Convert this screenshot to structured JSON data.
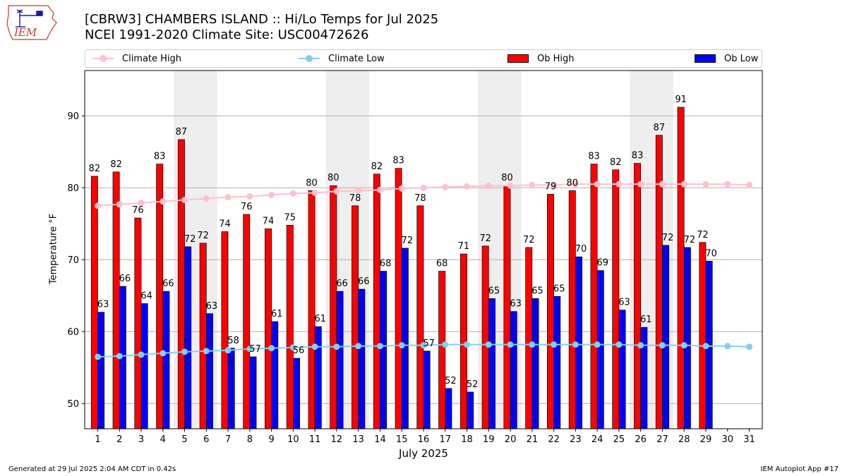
{
  "header": {
    "title_line1": "[CBRW3] CHAMBERS ISLAND :: Hi/Lo Temps for Jul 2025",
    "title_line2": "NCEI 1991-2020 Climate Site: USC00472626",
    "logo_text": "IEM"
  },
  "legend": {
    "climate_high": "Climate High",
    "climate_low": "Climate Low",
    "ob_high": "Ob High",
    "ob_low": "Ob Low"
  },
  "footer": {
    "generated": "Generated at 29 Jul 2025 2:04 AM CDT in 0.42s",
    "app": "IEM Autoplot App #17"
  },
  "colors": {
    "ob_high": "#ff0000",
    "ob_low": "#0000ff",
    "climate_high": "#ffc0cb",
    "climate_low": "#87ceeb",
    "weekend_band": "#eeeeee",
    "grid": "#b0b0b0"
  },
  "chart_data": {
    "type": "bar",
    "xlabel": "July 2025",
    "ylabel": "Temperature °F",
    "ylim": [
      46.5,
      96.3
    ],
    "yticks": [
      50,
      60,
      70,
      80,
      90
    ],
    "grid": "horizontal",
    "legend_position": "top",
    "categories": [
      "1",
      "2",
      "3",
      "4",
      "5",
      "6",
      "7",
      "8",
      "9",
      "10",
      "11",
      "12",
      "13",
      "14",
      "15",
      "16",
      "17",
      "18",
      "19",
      "20",
      "21",
      "22",
      "23",
      "24",
      "25",
      "26",
      "27",
      "28",
      "29",
      "30",
      "31"
    ],
    "weekend_bands": [
      [
        5,
        6
      ],
      [
        12,
        13
      ],
      [
        19,
        20
      ],
      [
        26,
        27
      ]
    ],
    "series": [
      {
        "name": "Ob High",
        "kind": "bar",
        "values": [
          81.6,
          82.2,
          75.8,
          83.3,
          86.7,
          72.3,
          73.9,
          76.3,
          74.3,
          74.8,
          79.6,
          80.3,
          77.5,
          81.9,
          82.7,
          77.5,
          68.4,
          70.8,
          71.9,
          80.3,
          71.7,
          79.1,
          79.6,
          83.3,
          82.5,
          83.4,
          87.3,
          91.2,
          72.4,
          null,
          null
        ],
        "labels": [
          "82",
          "82",
          "76",
          "83",
          "87",
          "72",
          "74",
          "76",
          "74",
          "75",
          "80",
          "80",
          "78",
          "82",
          "83",
          "78",
          "68",
          "71",
          "72",
          "80",
          "72",
          "79",
          "80",
          "83",
          "82",
          "83",
          "87",
          "91",
          "72",
          "",
          ""
        ]
      },
      {
        "name": "Ob Low",
        "kind": "bar",
        "values": [
          62.7,
          66.3,
          63.9,
          65.6,
          71.8,
          62.5,
          57.7,
          56.5,
          61.4,
          56.3,
          60.7,
          65.6,
          65.9,
          68.4,
          71.6,
          57.3,
          52.1,
          51.6,
          64.6,
          62.8,
          64.6,
          64.9,
          70.4,
          68.5,
          63.0,
          60.6,
          72.0,
          71.7,
          69.8,
          null,
          null
        ],
        "labels": [
          "63",
          "66",
          "64",
          "66",
          "72",
          "63",
          "58",
          "57",
          "61",
          "56",
          "61",
          "66",
          "66",
          "68",
          "72",
          "57",
          "52",
          "52",
          "65",
          "63",
          "65",
          "65",
          "70",
          "69",
          "63",
          "61",
          "72",
          "72",
          "70",
          "",
          ""
        ]
      },
      {
        "name": "Climate High",
        "kind": "line",
        "values": [
          77.5,
          77.7,
          77.9,
          78.1,
          78.3,
          78.5,
          78.7,
          78.8,
          79.0,
          79.2,
          79.3,
          79.5,
          79.6,
          79.7,
          79.9,
          80.0,
          80.1,
          80.2,
          80.3,
          80.3,
          80.4,
          80.4,
          80.5,
          80.5,
          80.5,
          80.5,
          80.5,
          80.5,
          80.5,
          80.5,
          80.4
        ]
      },
      {
        "name": "Climate Low",
        "kind": "line",
        "values": [
          56.5,
          56.6,
          56.8,
          57.0,
          57.2,
          57.3,
          57.4,
          57.6,
          57.7,
          57.8,
          57.9,
          57.9,
          58.0,
          58.0,
          58.1,
          58.1,
          58.2,
          58.2,
          58.2,
          58.2,
          58.2,
          58.2,
          58.2,
          58.2,
          58.2,
          58.1,
          58.1,
          58.1,
          58.0,
          58.0,
          57.9
        ]
      }
    ]
  }
}
